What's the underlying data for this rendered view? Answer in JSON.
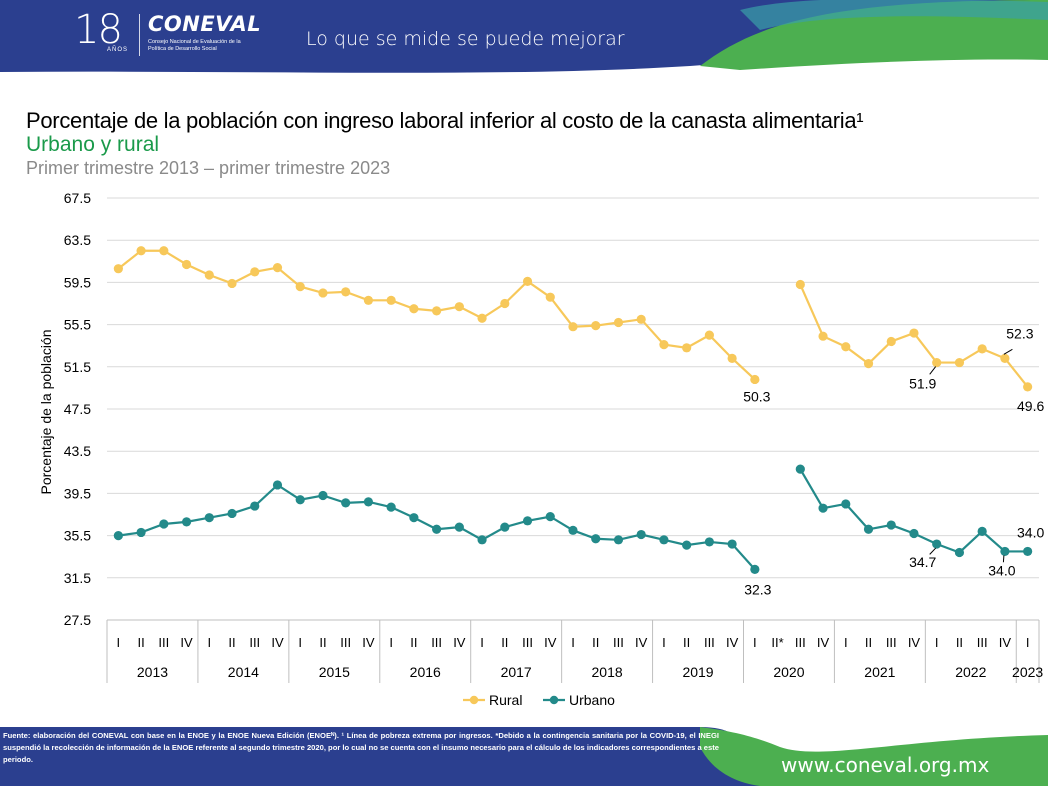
{
  "header": {
    "anniversary_number": "18",
    "anniversary_word": "AÑOS",
    "brand_name": "CONEVAL",
    "brand_description": "Consejo Nacional de Evaluación de la Política de Desarrollo Social",
    "slogan": "Lo que se mide se puede mejorar"
  },
  "footer": {
    "source_note": "Fuente: elaboración del CONEVAL con base en la ENOE y la ENOE Nueva Edición (ENOEᴺ). ¹ Línea de pobreza extrema por ingresos. *Debido a la contingencia sanitaria por la COVID-19, el INEGI suspendió la recolección de información de la ENOE referente al segundo trimestre 2020, por lo cual no se cuenta con el insumo necesario para el cálculo de los indicadores correspondientes a este periodo.",
    "website": "www.coneval.org.mx"
  },
  "colors": {
    "header_blue": "#2b3f8f",
    "green": "#4caf50",
    "rural": "#f7c85a",
    "urbano": "#238a8a",
    "subtitle_green": "#1a9a4a"
  },
  "chart_data": {
    "type": "line",
    "title": "Porcentaje de la población con ingreso laboral inferior al costo de la canasta alimentaria¹",
    "subtitle": "Urbano y rural",
    "period": "Primer trimestre 2013 – primer trimestre 2023",
    "ylabel": "Porcentaje de la población",
    "ylim": [
      27.5,
      67.5
    ],
    "yticks": [
      "27.5",
      "31.5",
      "35.5",
      "39.5",
      "43.5",
      "47.5",
      "51.5",
      "55.5",
      "59.5",
      "63.5",
      "67.5"
    ],
    "categories": [
      "I",
      "II",
      "III",
      "IV",
      "I",
      "II",
      "III",
      "IV",
      "I",
      "II",
      "III",
      "IV",
      "I",
      "II",
      "III",
      "IV",
      "I",
      "II",
      "III",
      "IV",
      "I",
      "II",
      "III",
      "IV",
      "I",
      "II",
      "III",
      "IV",
      "I",
      "II*",
      "III",
      "IV",
      "I",
      "II",
      "III",
      "IV",
      "I",
      "II",
      "III",
      "IV",
      "I"
    ],
    "years": [
      {
        "label": "2013",
        "quarters": 4
      },
      {
        "label": "2014",
        "quarters": 4
      },
      {
        "label": "2015",
        "quarters": 4
      },
      {
        "label": "2016",
        "quarters": 4
      },
      {
        "label": "2017",
        "quarters": 4
      },
      {
        "label": "2018",
        "quarters": 4
      },
      {
        "label": "2019",
        "quarters": 4
      },
      {
        "label": "2020",
        "quarters": 4
      },
      {
        "label": "2021",
        "quarters": 4
      },
      {
        "label": "2022",
        "quarters": 4
      },
      {
        "label": "2023",
        "quarters": 1
      }
    ],
    "series": [
      {
        "name": "Rural",
        "color": "#f7c85a",
        "values": [
          60.8,
          62.5,
          62.5,
          61.2,
          60.2,
          59.4,
          60.5,
          60.9,
          59.1,
          58.5,
          58.6,
          57.8,
          57.8,
          57.0,
          56.8,
          57.2,
          56.1,
          57.5,
          59.6,
          58.1,
          55.3,
          55.4,
          55.7,
          56.0,
          53.6,
          53.3,
          54.5,
          52.3,
          50.3,
          null,
          59.3,
          54.4,
          53.4,
          51.8,
          53.9,
          54.7,
          51.9,
          51.9,
          53.2,
          52.3,
          49.6
        ]
      },
      {
        "name": "Urbano",
        "color": "#238a8a",
        "values": [
          35.5,
          35.8,
          36.6,
          36.8,
          37.2,
          37.6,
          38.3,
          40.3,
          38.9,
          39.3,
          38.6,
          38.7,
          38.2,
          37.2,
          36.1,
          36.3,
          35.1,
          36.3,
          36.9,
          37.3,
          36.0,
          35.2,
          35.1,
          35.6,
          35.1,
          34.6,
          34.9,
          34.7,
          32.3,
          null,
          41.8,
          38.1,
          38.5,
          36.1,
          36.5,
          35.7,
          34.7,
          33.9,
          35.9,
          34.0,
          34.0
        ]
      }
    ],
    "data_labels": [
      {
        "series": "Rural",
        "index": 28,
        "text": "50.3"
      },
      {
        "series": "Rural",
        "index": 36,
        "text": "51.9"
      },
      {
        "series": "Rural",
        "index": 39,
        "text": "52.3"
      },
      {
        "series": "Rural",
        "index": 40,
        "text": "49.6"
      },
      {
        "series": "Urbano",
        "index": 28,
        "text": "32.3"
      },
      {
        "series": "Urbano",
        "index": 36,
        "text": "34.7"
      },
      {
        "series": "Urbano",
        "index": 39,
        "text": "34.0"
      },
      {
        "series": "Urbano",
        "index": 40,
        "text": "34.0"
      }
    ],
    "legend": [
      "Rural",
      "Urbano"
    ],
    "legend_position": "bottom-center",
    "grid": true
  }
}
